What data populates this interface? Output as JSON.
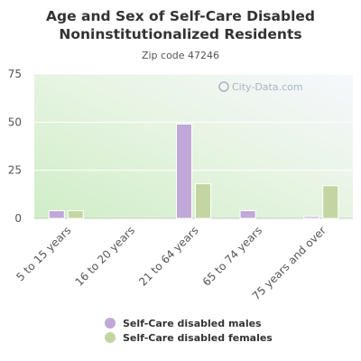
{
  "title": "Age and Sex of Self-Care Disabled Noninstitutionalized Residents",
  "subtitle": "Zip code 47246",
  "watermark": "City-Data.com",
  "chart_data": {
    "type": "bar",
    "categories": [
      "5 to 15 years",
      "16 to 20 years",
      "21 to 64 years",
      "65 to 74 years",
      "75 years and over"
    ],
    "series": [
      {
        "name": "Self-Care disabled males",
        "color": "#c0a8d8",
        "values": [
          4,
          0,
          49,
          4,
          1
        ]
      },
      {
        "name": "Self-Care disabled females",
        "color": "#c3d6a2",
        "values": [
          4,
          0,
          18,
          0,
          17
        ]
      }
    ],
    "ylim": [
      0,
      75
    ],
    "yticks": [
      0,
      25,
      50,
      75
    ],
    "grid": true,
    "legend_position": "bottom"
  }
}
